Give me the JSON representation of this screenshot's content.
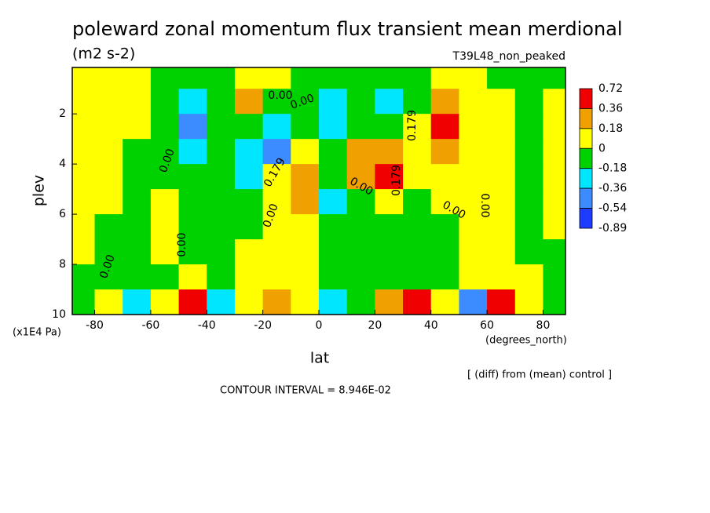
{
  "chart_data": {
    "type": "contour",
    "title": "poleward zonal momentum flux transient mean merdional",
    "subtitle": "(m2 s-2)",
    "run_label": "T39L48_non_peaked",
    "x_label": "lat",
    "y_label": "plev",
    "y_unit": "(x1E4 Pa)",
    "x_unit": "(degrees_north)",
    "diff_note": "[ (diff) from (mean) control ]",
    "contour_interval": "CONTOUR INTERVAL = 8.946E-02",
    "xlim": [
      -88,
      88
    ],
    "xticks": [
      -80,
      -60,
      -40,
      -20,
      0,
      20,
      40,
      60,
      80
    ],
    "ylim": [
      10,
      0.15
    ],
    "yticks": [
      2,
      4,
      6,
      8,
      10
    ],
    "levels": [
      0.72,
      0.36,
      0.18,
      0,
      -0.18,
      -0.36,
      -0.54,
      -0.89
    ],
    "level_colors": [
      "#f00000",
      "#f0a000",
      "#ffff00",
      "#00d200",
      "#00e6ff",
      "#3c8cff",
      "#1e3cff"
    ],
    "contour_labels": [
      "0.00",
      "0.00",
      "0.00",
      "0.179",
      "0.00",
      "0.00",
      "0.00",
      "0.00",
      "0.179",
      "0.179",
      "0.00",
      "0.00"
    ],
    "x": [
      -85,
      -75,
      -65,
      -55,
      -45,
      -35,
      -25,
      -15,
      -5,
      5,
      15,
      25,
      35,
      45,
      55,
      65,
      75,
      85
    ],
    "y": [
      0.5,
      1.5,
      2.5,
      3.5,
      4.5,
      5.5,
      6.5,
      7.5,
      8.5,
      9.5
    ],
    "z": [
      [
        0.1,
        0.1,
        0.1,
        -0.1,
        -0.1,
        -0.1,
        0.1,
        0.1,
        -0.1,
        -0.1,
        -0.1,
        -0.1,
        -0.1,
        0.1,
        0.1,
        -0.1,
        -0.1,
        -0.1
      ],
      [
        0.1,
        0.1,
        0.1,
        -0.1,
        -0.25,
        -0.1,
        0.25,
        -0.1,
        -0.1,
        -0.25,
        -0.1,
        -0.25,
        -0.1,
        0.25,
        0.1,
        0.1,
        -0.1,
        0.1
      ],
      [
        0.1,
        0.1,
        0.1,
        -0.1,
        -0.45,
        -0.1,
        -0.1,
        -0.25,
        -0.1,
        -0.25,
        -0.1,
        -0.1,
        0.1,
        0.5,
        0.1,
        0.1,
        -0.1,
        0.1
      ],
      [
        0.1,
        0.1,
        -0.1,
        -0.1,
        -0.25,
        -0.1,
        -0.25,
        -0.45,
        0.1,
        -0.1,
        0.25,
        0.25,
        0.1,
        0.25,
        0.1,
        0.1,
        -0.1,
        0.1
      ],
      [
        0.1,
        0.1,
        -0.1,
        -0.1,
        -0.1,
        -0.1,
        -0.25,
        0.1,
        0.25,
        -0.1,
        0.25,
        0.5,
        0.1,
        0.1,
        0.1,
        0.1,
        -0.1,
        0.1
      ],
      [
        0.1,
        0.1,
        -0.1,
        0.1,
        -0.1,
        -0.1,
        -0.1,
        0.1,
        0.25,
        -0.25,
        -0.1,
        0.1,
        -0.1,
        0.1,
        0.1,
        0.1,
        -0.1,
        0.1
      ],
      [
        0.1,
        -0.1,
        -0.1,
        0.1,
        -0.1,
        -0.1,
        -0.1,
        0.1,
        0.1,
        -0.1,
        -0.1,
        -0.1,
        -0.1,
        -0.1,
        0.1,
        0.1,
        -0.1,
        0.1
      ],
      [
        0.1,
        -0.1,
        -0.1,
        0.1,
        -0.1,
        -0.1,
        0.1,
        0.1,
        0.1,
        -0.1,
        -0.1,
        -0.1,
        -0.1,
        -0.1,
        0.1,
        0.1,
        -0.1,
        -0.1
      ],
      [
        -0.1,
        -0.1,
        -0.1,
        -0.1,
        0.1,
        -0.1,
        0.1,
        0.1,
        0.1,
        -0.1,
        -0.1,
        -0.1,
        -0.1,
        -0.1,
        0.1,
        0.1,
        0.1,
        -0.1
      ],
      [
        -0.1,
        0.1,
        -0.25,
        0.1,
        0.5,
        -0.25,
        0.1,
        0.25,
        0.1,
        -0.25,
        -0.1,
        0.25,
        0.5,
        0.1,
        -0.45,
        0.5,
        0.1,
        -0.1
      ]
    ]
  }
}
